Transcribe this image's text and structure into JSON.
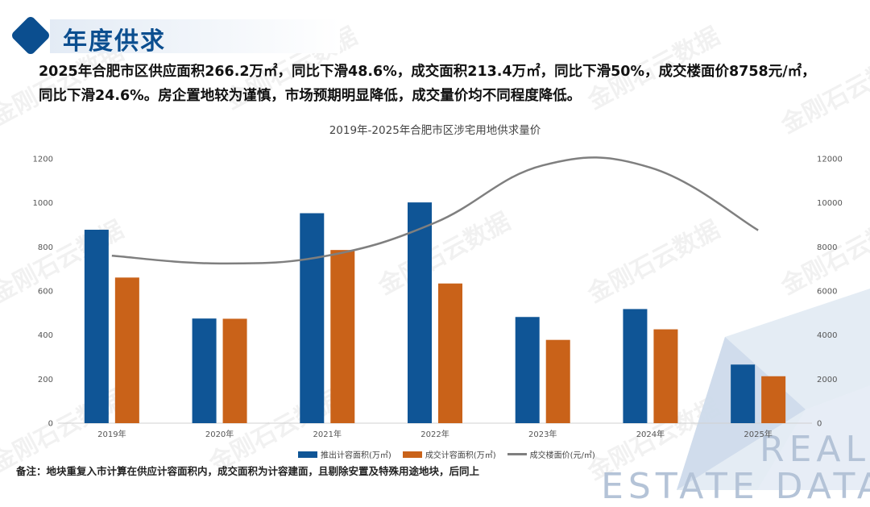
{
  "header": {
    "title": "年度供求"
  },
  "description": {
    "line1": "2025年合肥市区供应面积266.2万㎡，同比下滑48.6%，成交面积213.4万㎡，同比下滑50%，成交楼面价8758元/㎡，",
    "line2": "同比下滑24.6%。房企置地较为谨慎，市场预期明显降低，成交量价均不同程度降低。"
  },
  "watermark": {
    "text": "金刚石云数据"
  },
  "background_text": {
    "line1": "REAL",
    "line2": "ESTATE DATA"
  },
  "note": {
    "text": "备注：地块重复入市计算在供应计容面积内，成交面积为计容建面，且剔除安置及特殊用途地块，后同上"
  },
  "colors": {
    "primary": "#0b4e8f",
    "supply": "#0f5596",
    "deal": "#c96219",
    "price": "#7f7f7f"
  },
  "chart_data": {
    "type": "bar",
    "title": "2019年-2025年合肥市区涉宅用地供求量价",
    "categories": [
      "2019年",
      "2020年",
      "2021年",
      "2022年",
      "2023年",
      "2024年",
      "2025年"
    ],
    "series": [
      {
        "name": "推出计容面积(万㎡)",
        "type": "bar",
        "axis": "left",
        "values": [
          878,
          475,
          953,
          1002,
          482,
          518,
          266
        ]
      },
      {
        "name": "成交计容面积(万㎡)",
        "type": "bar",
        "axis": "left",
        "values": [
          661,
          474,
          786,
          634,
          378,
          426,
          213
        ]
      },
      {
        "name": "成交楼面价(元/㎡)",
        "type": "line",
        "axis": "right",
        "values": [
          7600,
          7250,
          7600,
          9100,
          11700,
          11600,
          8758
        ]
      }
    ],
    "ylim_left": [
      0,
      1200
    ],
    "ylim_right": [
      0,
      12000
    ],
    "yticks_left": [
      "0",
      "200",
      "400",
      "600",
      "800",
      "1000",
      "1200"
    ],
    "yticks_right": [
      "0",
      "2000",
      "4000",
      "6000",
      "8000",
      "10000",
      "12000"
    ],
    "legend_position": "bottom"
  }
}
